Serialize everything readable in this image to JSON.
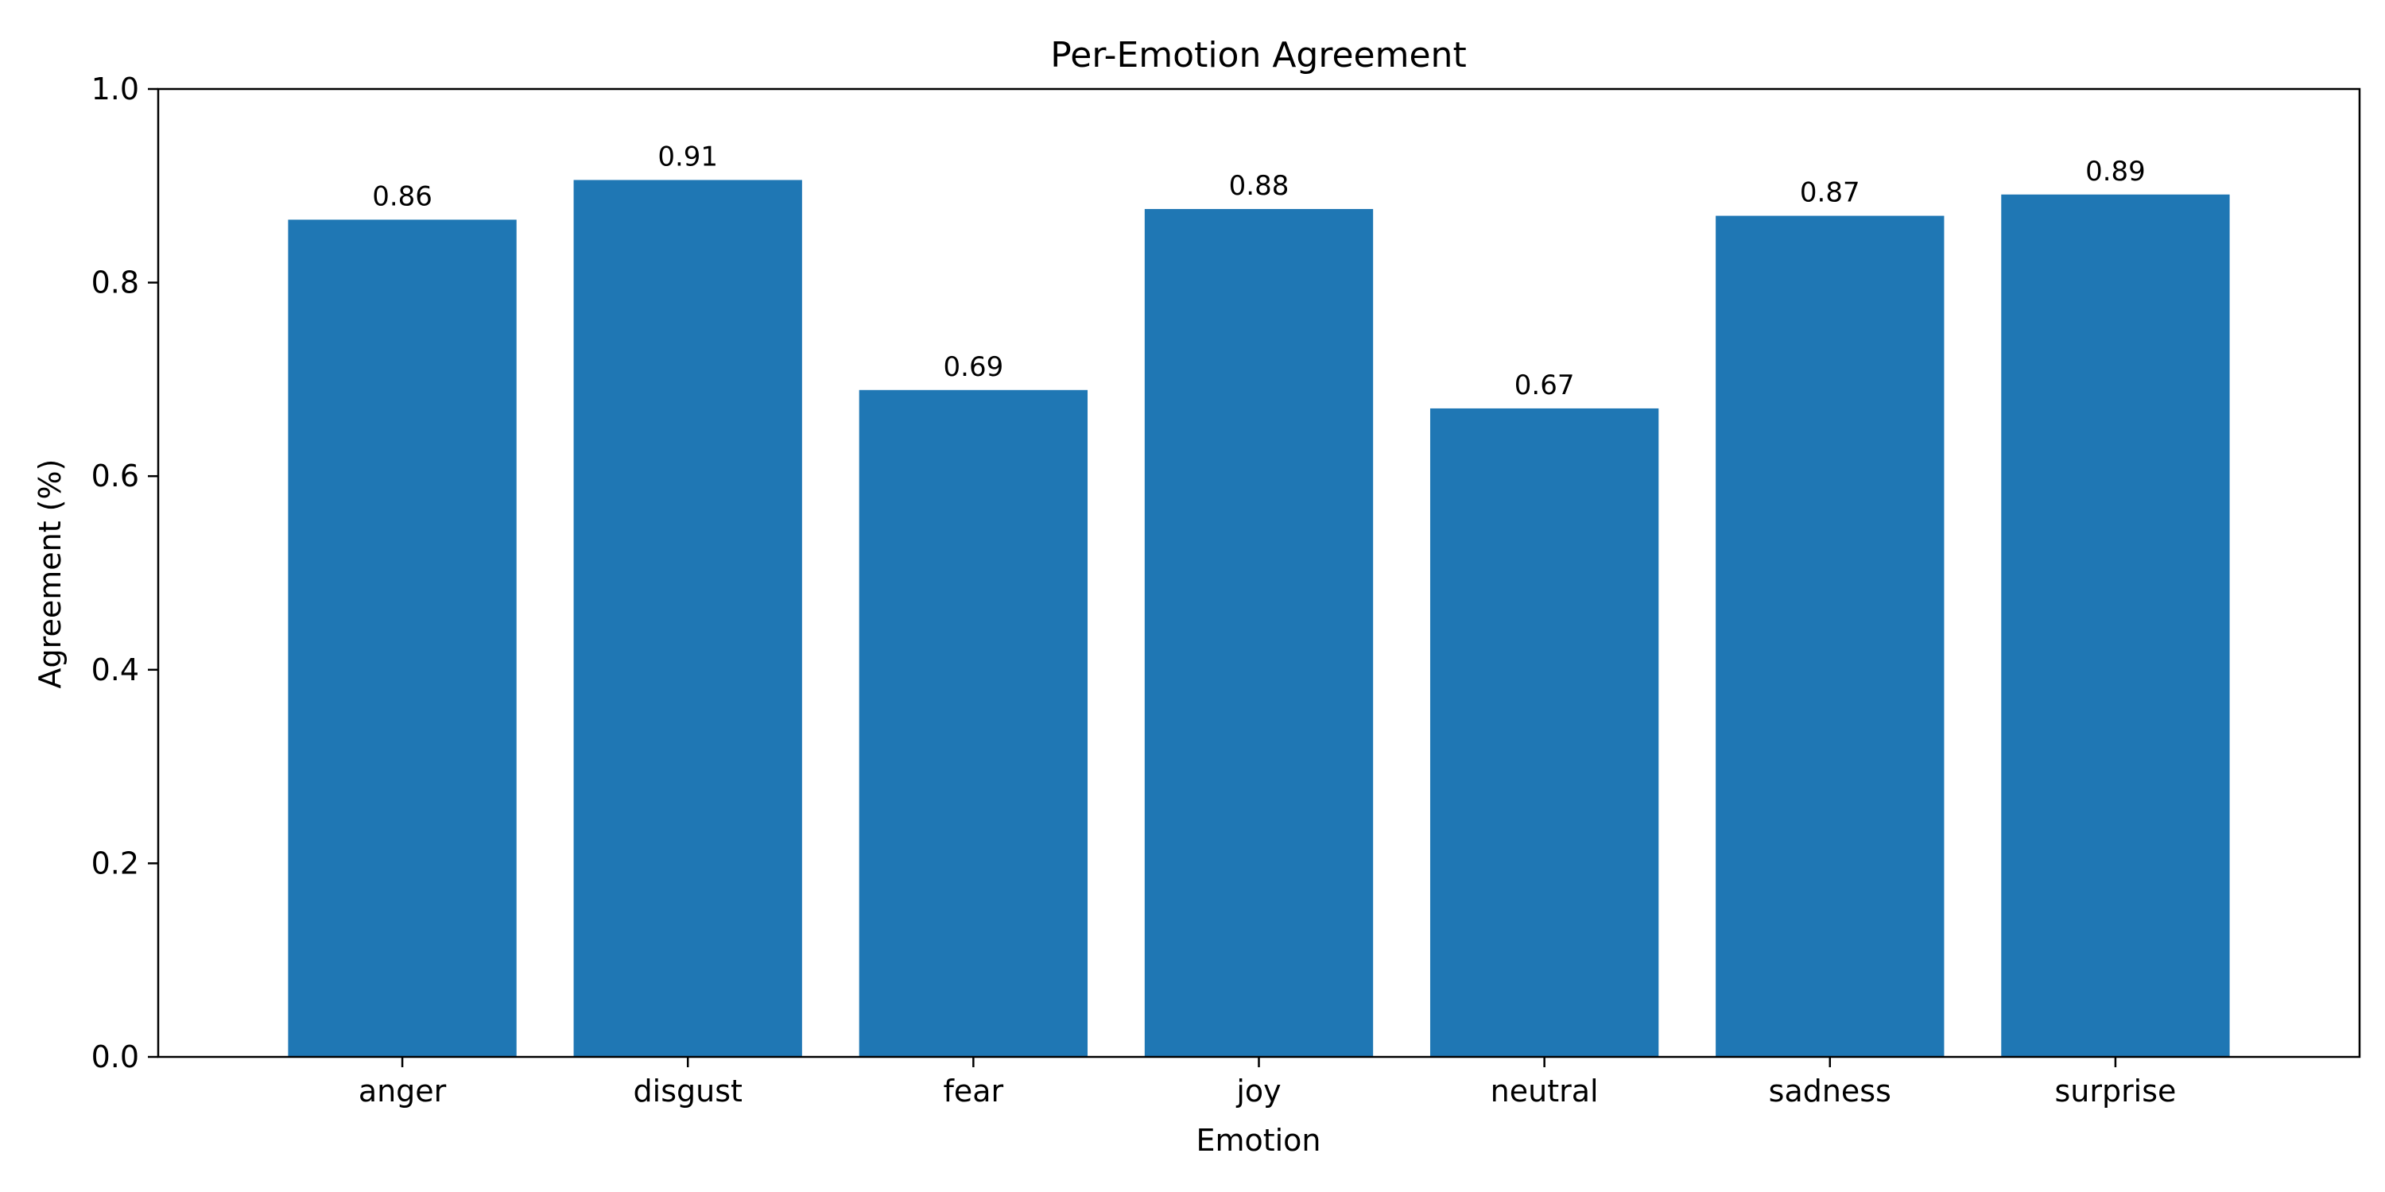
{
  "chart_data": {
    "type": "bar",
    "title": "Per-Emotion Agreement",
    "xlabel": "Emotion",
    "ylabel": "Agreement (%)",
    "categories": [
      "anger",
      "disgust",
      "fear",
      "joy",
      "neutral",
      "sadness",
      "surprise"
    ],
    "values": [
      0.865,
      0.906,
      0.689,
      0.876,
      0.67,
      0.869,
      0.891
    ],
    "value_labels": [
      "0.86",
      "0.91",
      "0.69",
      "0.88",
      "0.67",
      "0.87",
      "0.89"
    ],
    "ylim": [
      0,
      1.0
    ],
    "yticks": [
      0.0,
      0.2,
      0.4,
      0.6,
      0.8,
      1.0
    ],
    "ytick_labels": [
      "0.0",
      "0.2",
      "0.4",
      "0.6",
      "0.8",
      "1.0"
    ],
    "grid": false,
    "legend": false,
    "colors": {
      "bar": "#1f77b4",
      "axes": "#000000",
      "background": "#ffffff"
    }
  }
}
